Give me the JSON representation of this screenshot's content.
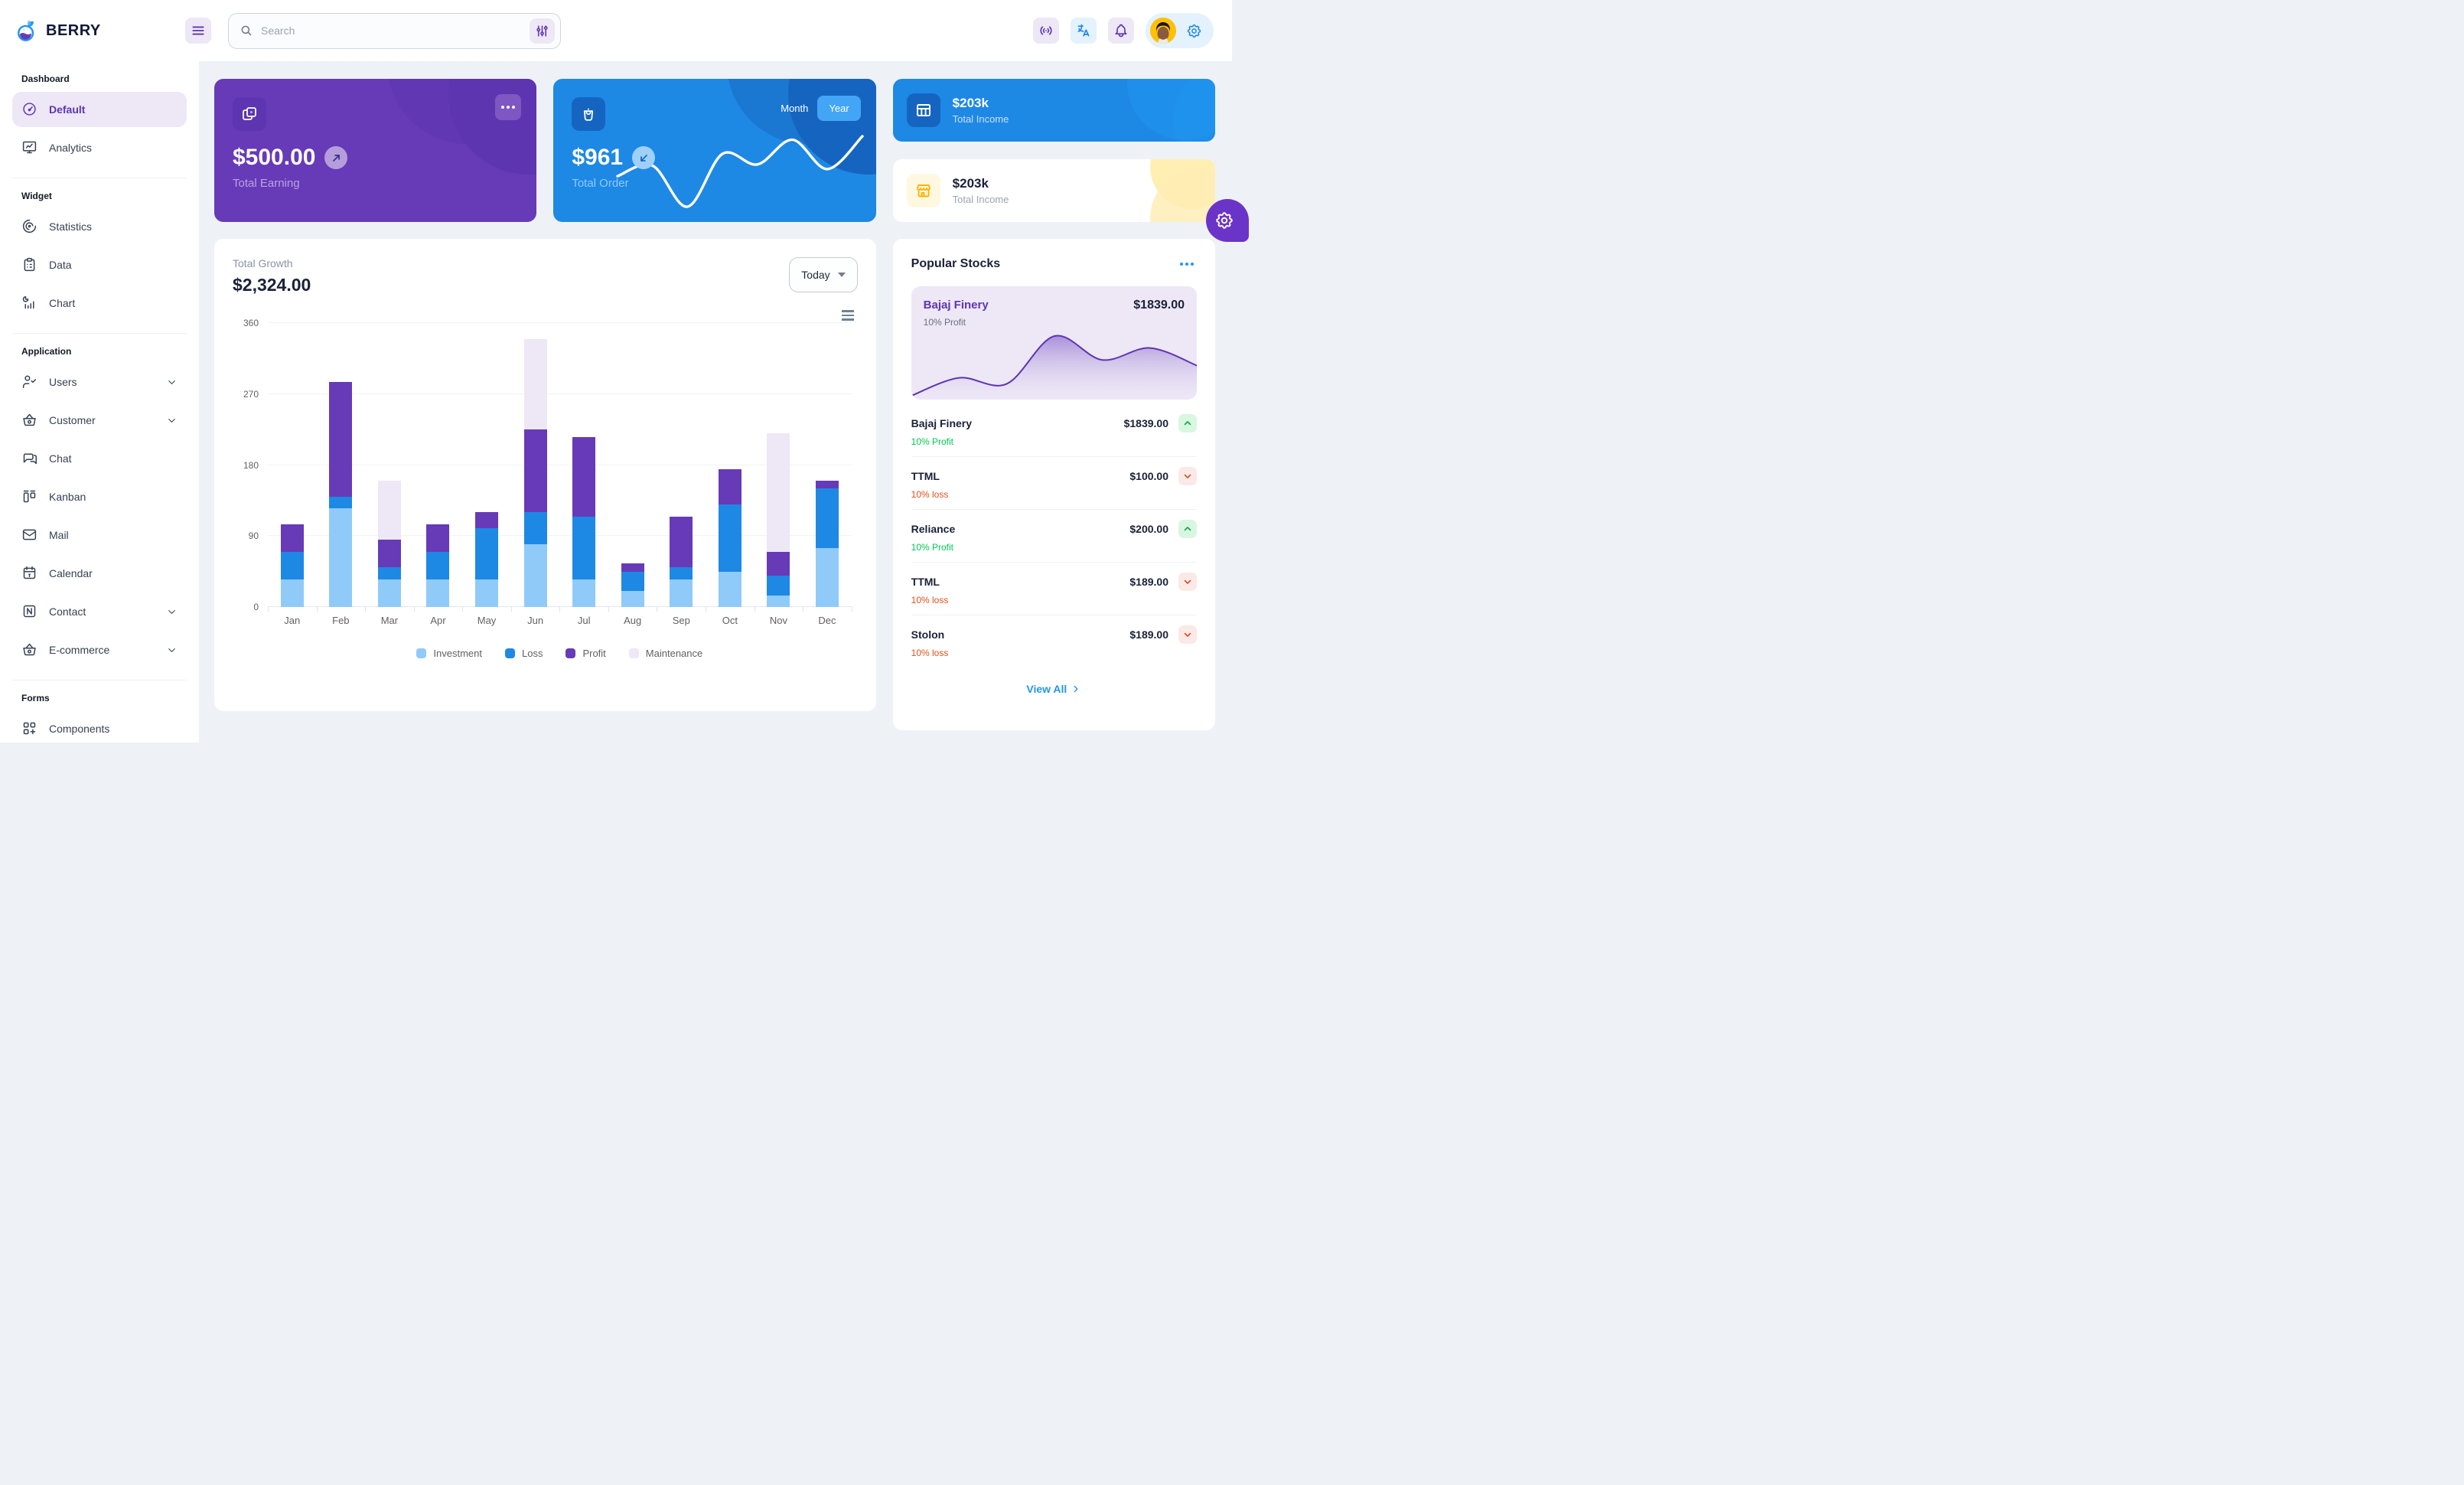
{
  "app": {
    "brand": "BERRY"
  },
  "colors": {
    "accent_purple": "#673ab7",
    "accent_purple_dark": "#5e35b1",
    "accent_blue": "#1e88e5",
    "accent_blue_light": "#90caf9",
    "background": "#eef2f6",
    "success": "#00c853",
    "loss_orange": "#d84315",
    "warning_yellow": "#ffb300"
  },
  "header": {
    "search": {
      "placeholder": "Search"
    },
    "action_icons": [
      "hamburger-icon",
      "filter-sliders-icon",
      "broadcast-icon",
      "translate-icon",
      "bell-icon",
      "gear-icon"
    ]
  },
  "sidebar": {
    "sections": [
      {
        "caption": "Dashboard",
        "items": [
          {
            "label": "Default",
            "icon": "gauge",
            "active": true
          },
          {
            "label": "Analytics",
            "icon": "analytics"
          }
        ]
      },
      {
        "caption": "Widget",
        "items": [
          {
            "label": "Statistics",
            "icon": "statistics"
          },
          {
            "label": "Data",
            "icon": "data"
          },
          {
            "label": "Chart",
            "icon": "chart"
          }
        ]
      },
      {
        "caption": "Application",
        "items": [
          {
            "label": "Users",
            "icon": "users",
            "chevron": true
          },
          {
            "label": "Customer",
            "icon": "basket",
            "chevron": true
          },
          {
            "label": "Chat",
            "icon": "chat"
          },
          {
            "label": "Kanban",
            "icon": "kanban"
          },
          {
            "label": "Mail",
            "icon": "mail"
          },
          {
            "label": "Calendar",
            "icon": "calendar"
          },
          {
            "label": "Contact",
            "icon": "contact",
            "chevron": true
          },
          {
            "label": "E-commerce",
            "icon": "basket",
            "chevron": true
          }
        ]
      },
      {
        "caption": "Forms",
        "items": [
          {
            "label": "Components",
            "icon": "components"
          }
        ]
      }
    ]
  },
  "cards": {
    "earning": {
      "amount": "$500.00",
      "label": "Total Earning"
    },
    "order": {
      "amount": "$961",
      "label": "Total Order",
      "month_label": "Month",
      "year_label": "Year",
      "active_toggle": "Year"
    },
    "income_dark": {
      "amount": "$203k",
      "label": "Total Income"
    },
    "income_light": {
      "amount": "$203k",
      "label": "Total Income"
    }
  },
  "growth": {
    "label": "Total Growth",
    "amount": "$2,324.00",
    "period": "Today"
  },
  "stocks": {
    "title": "Popular Stocks",
    "featured": {
      "name": "Bajaj Finery",
      "price": "$1839.00",
      "change": "10% Profit"
    },
    "items": [
      {
        "name": "Bajaj Finery",
        "price": "$1839.00",
        "change": "10% Profit",
        "direction": "up"
      },
      {
        "name": "TTML",
        "price": "$100.00",
        "change": "10% loss",
        "direction": "down"
      },
      {
        "name": "Reliance",
        "price": "$200.00",
        "change": "10% Profit",
        "direction": "up"
      },
      {
        "name": "TTML",
        "price": "$189.00",
        "change": "10% loss",
        "direction": "down"
      },
      {
        "name": "Stolon",
        "price": "$189.00",
        "change": "10% loss",
        "direction": "down"
      }
    ],
    "view_all": "View All"
  },
  "chart_data": [
    {
      "id": "total-growth",
      "type": "bar",
      "stacked": true,
      "title": "Total Growth",
      "categories": [
        "Jan",
        "Feb",
        "Mar",
        "Apr",
        "May",
        "Jun",
        "Jul",
        "Aug",
        "Sep",
        "Oct",
        "Nov",
        "Dec"
      ],
      "series": [
        {
          "name": "Investment",
          "color": "#90caf9",
          "values": [
            35,
            125,
            35,
            35,
            35,
            80,
            35,
            20,
            35,
            45,
            15,
            75
          ]
        },
        {
          "name": "Loss",
          "color": "#1e88e5",
          "values": [
            35,
            15,
            15,
            35,
            65,
            40,
            80,
            25,
            15,
            85,
            25,
            75
          ]
        },
        {
          "name": "Profit",
          "color": "#673ab7",
          "values": [
            35,
            145,
            35,
            35,
            20,
            105,
            100,
            10,
            65,
            45,
            30,
            10
          ]
        },
        {
          "name": "Maintenance",
          "color": "#ede7f6",
          "values": [
            0,
            0,
            75,
            0,
            0,
            115,
            0,
            0,
            0,
            0,
            150,
            0
          ]
        }
      ],
      "ylim": [
        0,
        360
      ],
      "yticks": [
        0,
        90,
        180,
        270,
        360
      ],
      "grid": true,
      "legend_position": "bottom"
    },
    {
      "id": "total-order-sparkline",
      "type": "line",
      "values": [
        35,
        44,
        9,
        54,
        45,
        66,
        41,
        69
      ],
      "color": "#ffffff"
    },
    {
      "id": "bajaj-finery-area",
      "type": "area",
      "values": [
        0,
        15,
        10,
        50,
        30,
        40,
        25
      ],
      "color": "#5e35b1"
    }
  ]
}
